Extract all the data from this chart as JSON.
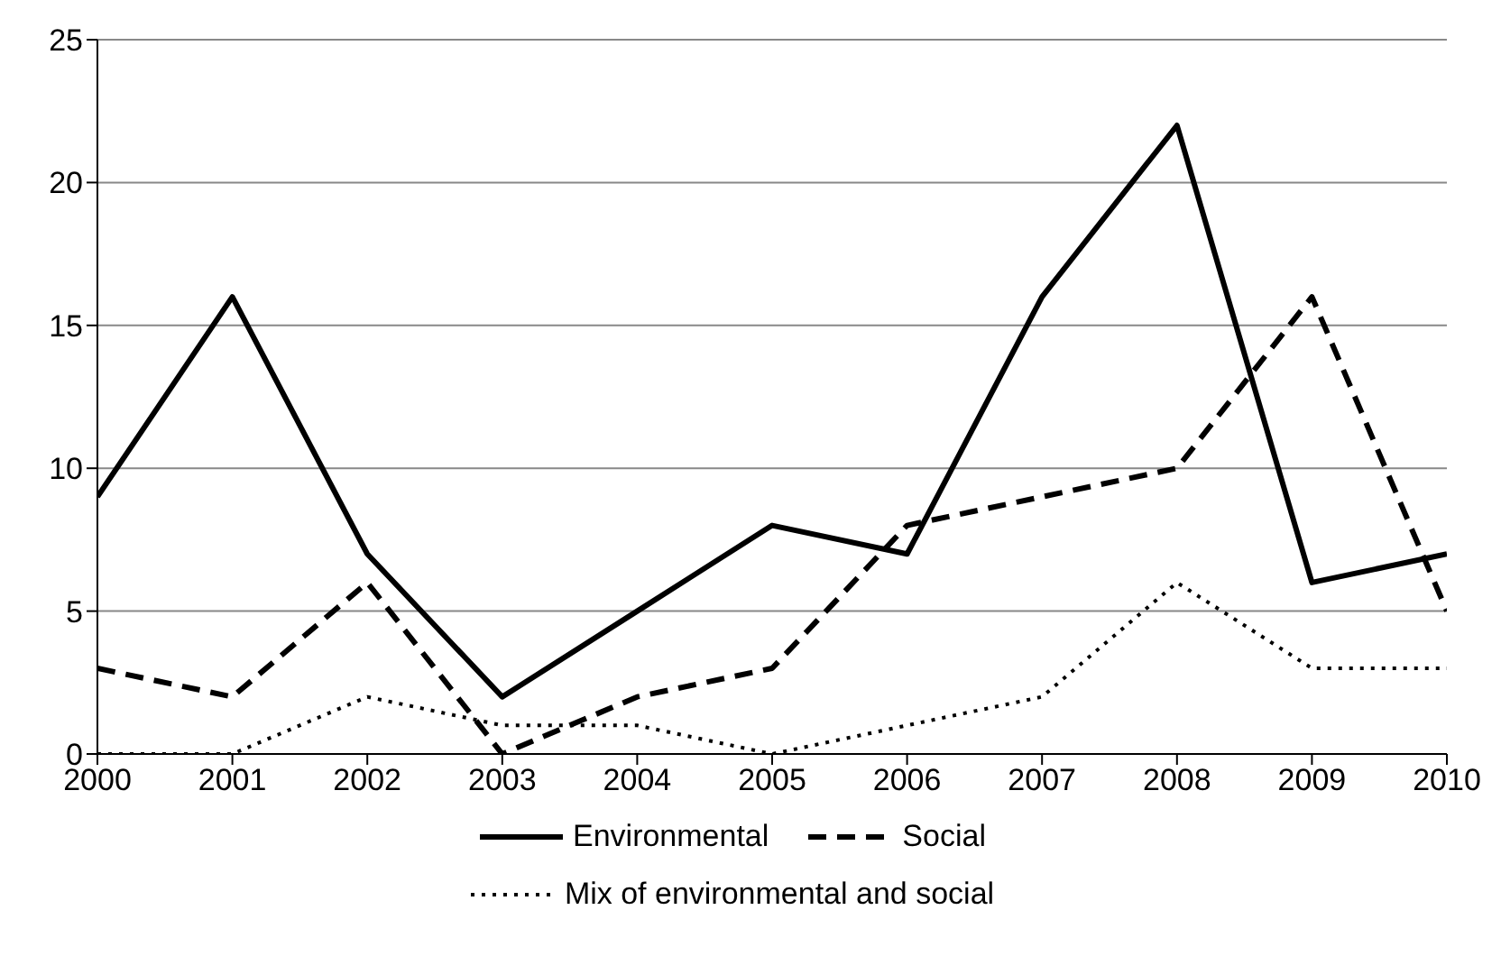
{
  "chart_data": {
    "type": "line",
    "x": [
      2000,
      2001,
      2002,
      2003,
      2004,
      2005,
      2006,
      2007,
      2008,
      2009,
      2010
    ],
    "xlim": [
      2000,
      2010
    ],
    "xticks": [
      2000,
      2001,
      2002,
      2003,
      2004,
      2005,
      2006,
      2007,
      2008,
      2009,
      2010
    ],
    "ylim": [
      0,
      25
    ],
    "yticks": [
      0,
      5,
      10,
      15,
      20,
      25
    ],
    "grid": "y",
    "legend": "bottom",
    "marker": "none",
    "series": [
      {
        "name": "Environmental",
        "color": "#000000",
        "line_style": "solid",
        "values": [
          9,
          16,
          7,
          2,
          5,
          8,
          7,
          16,
          22,
          6,
          7
        ]
      },
      {
        "name": "Social",
        "color": "#000000",
        "line_style": "dashed",
        "values": [
          3,
          2,
          6,
          0,
          2,
          3,
          8,
          9,
          10,
          16,
          5
        ]
      },
      {
        "name": "Mix of environmental and social",
        "color": "#000000",
        "line_style": "dotted",
        "values": [
          0,
          0,
          2,
          1,
          1,
          0,
          1,
          2,
          6,
          3,
          3
        ]
      }
    ]
  }
}
